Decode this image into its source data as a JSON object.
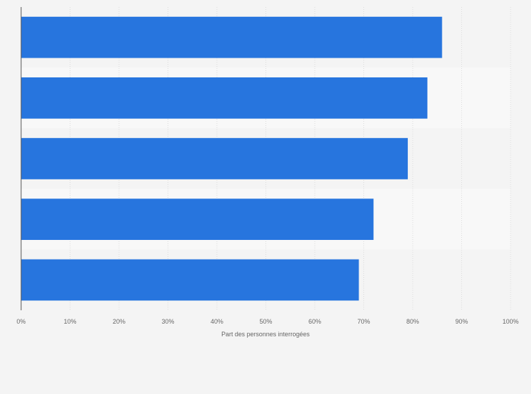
{
  "chart_data": {
    "type": "bar",
    "orientation": "horizontal",
    "categories": [
      "",
      "",
      "",
      "",
      ""
    ],
    "values": [
      86,
      83,
      79,
      72,
      69
    ],
    "title": "",
    "xlabel": "Part des personnes interrogées",
    "ylabel": "",
    "xlim": [
      0,
      100
    ],
    "x_ticks": [
      "0%",
      "10%",
      "20%",
      "30%",
      "40%",
      "50%",
      "60%",
      "70%",
      "80%",
      "90%",
      "100%"
    ],
    "grid": true,
    "bar_color": "#2775de",
    "band_colors": [
      "#f4f4f4",
      "#f8f8f8"
    ]
  }
}
